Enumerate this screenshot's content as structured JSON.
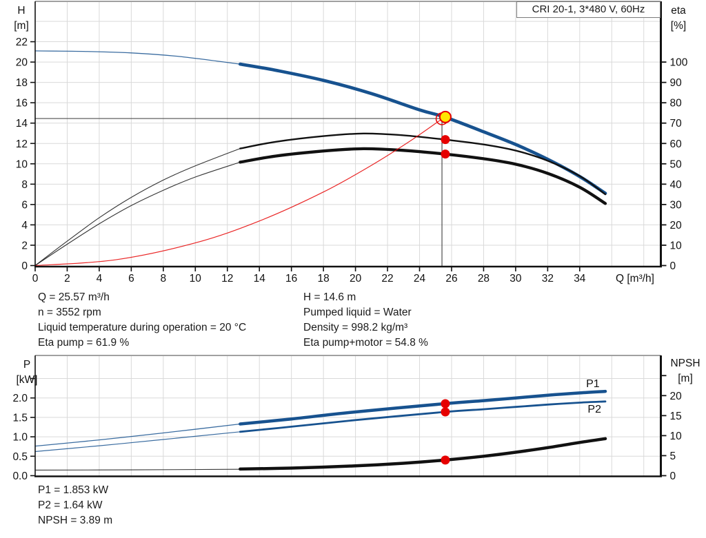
{
  "title_box": "CRI 20-1, 3*480 V, 60Hz",
  "colors": {
    "blue": "#17528f",
    "red": "#e60000",
    "yellow": "#ffe600",
    "black": "#111111",
    "grid": "#d9d9d9",
    "border_gray": "#a0a0a0",
    "crosshair": "#4d4d4d"
  },
  "info_top": {
    "left": [
      "Q = 25.57 m³/h",
      "n = 3552 rpm",
      "Liquid temperature during operation = 20 °C",
      "Eta pump = 61.9 %"
    ],
    "right": [
      "H = 14.6 m",
      "Pumped liquid = Water",
      "Density = 998.2 kg/m³",
      "Eta pump+motor = 54.8 %"
    ]
  },
  "info_bottom": [
    "P1 = 1.853 kW",
    "P2 = 1.64 kW",
    "NPSH = 3.89 m"
  ],
  "chart_data": [
    {
      "id": "hq",
      "type": "line",
      "title": "CRI 20-1, 3*480 V, 60Hz",
      "x_axis": {
        "label": "Q [m³/h]",
        "ticks": [
          0,
          2,
          4,
          6,
          8,
          10,
          12,
          14,
          16,
          18,
          20,
          22,
          24,
          26,
          28,
          30,
          32,
          34
        ],
        "range": [
          0,
          39
        ]
      },
      "y_left": {
        "label_lines": [
          "H",
          "[m]"
        ],
        "ticks": [
          0,
          2,
          4,
          6,
          8,
          10,
          12,
          14,
          16,
          18,
          20,
          22
        ],
        "range": [
          0,
          26
        ],
        "extra_grid": [
          24
        ]
      },
      "y_right": {
        "label_lines": [
          "eta",
          "[%]"
        ],
        "ticks": [
          0,
          10,
          20,
          30,
          40,
          50,
          60,
          70,
          80,
          90,
          100
        ],
        "range": [
          0,
          130
        ],
        "unlabeled_ticks": []
      },
      "crosshair": {
        "q": 25.4,
        "value": 14.45
      },
      "series": [
        {
          "name": "pump-curve-h",
          "axis": "left",
          "color": "blue",
          "thin_width": 1.3,
          "thick_width": 4.7,
          "thin": [
            [
              0,
              21.1
            ],
            [
              3,
              21.05
            ],
            [
              6,
              20.9
            ],
            [
              9,
              20.55
            ],
            [
              12.8,
              19.8
            ]
          ],
          "thick": [
            [
              12.8,
              19.8
            ],
            [
              15,
              19.2
            ],
            [
              18,
              18.2
            ],
            [
              21,
              16.9
            ],
            [
              24,
              15.3
            ],
            [
              25.57,
              14.6
            ],
            [
              28,
              13.15
            ],
            [
              30,
              11.9
            ],
            [
              32,
              10.45
            ],
            [
              34,
              8.75
            ],
            [
              35.6,
              7.1
            ]
          ]
        },
        {
          "name": "eta-pump-curve",
          "axis": "right",
          "color": "black",
          "thin_width": 1.1,
          "thick_width": 2.4,
          "thin": [
            [
              0,
              0
            ],
            [
              2,
              12
            ],
            [
              4,
              23.5
            ],
            [
              6,
              33.5
            ],
            [
              8,
              42
            ],
            [
              10,
              49
            ],
            [
              12.8,
              57.5
            ]
          ],
          "thick": [
            [
              12.8,
              57.5
            ],
            [
              15,
              60.8
            ],
            [
              18,
              63.6
            ],
            [
              20.5,
              64.9
            ],
            [
              23,
              64
            ],
            [
              25.57,
              61.9
            ],
            [
              28,
              59.5
            ],
            [
              30,
              56.5
            ],
            [
              32,
              51.5
            ],
            [
              34,
              44
            ],
            [
              35.6,
              35
            ]
          ]
        },
        {
          "name": "eta-pump-motor-curve",
          "axis": "right",
          "color": "black",
          "thin_width": 1.1,
          "thick_width": 4.3,
          "thin": [
            [
              0,
              0
            ],
            [
              2,
              10.5
            ],
            [
              4,
              20.5
            ],
            [
              6,
              29.5
            ],
            [
              8,
              37
            ],
            [
              10,
              43.5
            ],
            [
              12.8,
              50.8
            ]
          ],
          "thick": [
            [
              12.8,
              50.8
            ],
            [
              15,
              53.8
            ],
            [
              18,
              56.3
            ],
            [
              20.5,
              57.4
            ],
            [
              23,
              56.6
            ],
            [
              25.57,
              54.8
            ],
            [
              28,
              52.5
            ],
            [
              30,
              49.8
            ],
            [
              32,
              45.3
            ],
            [
              34,
              38.5
            ],
            [
              35.6,
              30.5
            ]
          ]
        },
        {
          "name": "system-curve",
          "axis": "left",
          "color": "red",
          "thin_width": 1.2,
          "thick_width": 0,
          "thin": [
            [
              0,
              0
            ],
            [
              5,
              0.56
            ],
            [
              10,
              2.23
            ],
            [
              14,
              4.38
            ],
            [
              18,
              7.23
            ],
            [
              21,
              9.85
            ],
            [
              23.5,
              12.33
            ],
            [
              25.7,
              14.75
            ]
          ],
          "thick": []
        }
      ],
      "markers": [
        {
          "name": "crosshair-intersection-marker",
          "q": 25.4,
          "value": 14.42,
          "axis": "left",
          "style": "open-red"
        },
        {
          "name": "duty-point-marker",
          "q": 25.61,
          "value": 14.6,
          "axis": "left",
          "style": "yellow"
        },
        {
          "name": "eta-pump-duty-marker",
          "q": 25.61,
          "value": 61.9,
          "axis": "right",
          "style": "red"
        },
        {
          "name": "eta-pump-motor-duty-marker",
          "q": 25.61,
          "value": 54.8,
          "axis": "right",
          "style": "red"
        }
      ],
      "curve_labels": []
    },
    {
      "id": "power-npsh",
      "type": "line",
      "title": "",
      "x_axis": {
        "label": "",
        "ticks": [],
        "range": [
          0,
          39
        ]
      },
      "y_left": {
        "label_lines": [
          "P",
          "[kW]"
        ],
        "ticks": [
          0,
          0.5,
          1,
          1.5,
          2
        ],
        "tick_labels": [
          "0.0",
          "0.5",
          "1.0",
          "1.5",
          "2.0"
        ],
        "range": [
          0,
          3.1
        ],
        "extra_grid": [
          2.5
        ],
        "unlabeled_ticks": [
          2.5
        ]
      },
      "y_right": {
        "label_lines": [
          "NPSH",
          "[m]"
        ],
        "ticks": [
          0,
          5,
          10,
          15,
          20
        ],
        "range": [
          0,
          30
        ],
        "unlabeled_ticks": [
          25
        ]
      },
      "crosshair": null,
      "series": [
        {
          "name": "p1-curve",
          "axis": "left",
          "color": "blue",
          "thin_width": 1.3,
          "thick_width": 4.5,
          "thin": [
            [
              0,
              0.76
            ],
            [
              4,
              0.92
            ],
            [
              8,
              1.1
            ],
            [
              12.8,
              1.33
            ]
          ],
          "thick": [
            [
              12.8,
              1.33
            ],
            [
              16,
              1.46
            ],
            [
              20,
              1.64
            ],
            [
              25.57,
              1.853
            ],
            [
              28,
              1.93
            ],
            [
              30,
              2.0
            ],
            [
              32,
              2.07
            ],
            [
              34,
              2.13
            ],
            [
              35.6,
              2.17
            ]
          ]
        },
        {
          "name": "p2-curve",
          "axis": "left",
          "color": "blue",
          "thin_width": 1.2,
          "thick_width": 2.8,
          "thin": [
            [
              0,
              0.62
            ],
            [
              4,
              0.77
            ],
            [
              8,
              0.93
            ],
            [
              12.8,
              1.13
            ]
          ],
          "thick": [
            [
              12.8,
              1.13
            ],
            [
              16,
              1.26
            ],
            [
              20,
              1.43
            ],
            [
              25.57,
              1.64
            ],
            [
              28,
              1.71
            ],
            [
              30,
              1.77
            ],
            [
              32,
              1.83
            ],
            [
              34,
              1.88
            ],
            [
              35.6,
              1.91
            ]
          ]
        },
        {
          "name": "npsh-curve",
          "axis": "right",
          "color": "black",
          "thin_width": 1.1,
          "thick_width": 4.5,
          "thin": [
            [
              0,
              1.4
            ],
            [
              6,
              1.45
            ],
            [
              12.8,
              1.6
            ]
          ],
          "thick": [
            [
              12.8,
              1.65
            ],
            [
              16,
              1.9
            ],
            [
              20,
              2.45
            ],
            [
              23,
              3.1
            ],
            [
              25.57,
              3.89
            ],
            [
              28,
              4.85
            ],
            [
              30,
              5.85
            ],
            [
              32,
              7.0
            ],
            [
              34,
              8.3
            ],
            [
              35.6,
              9.25
            ]
          ]
        }
      ],
      "markers": [
        {
          "name": "p1-duty-marker",
          "q": 25.61,
          "value": 1.853,
          "axis": "left",
          "style": "red"
        },
        {
          "name": "p2-duty-marker",
          "q": 25.61,
          "value": 1.64,
          "axis": "left",
          "style": "red"
        },
        {
          "name": "npsh-duty-marker",
          "q": 25.61,
          "value": 3.89,
          "axis": "right",
          "style": "red"
        }
      ],
      "curve_labels": [
        {
          "text": "P1",
          "q": 34.4,
          "value": 2.28,
          "color": "blue"
        },
        {
          "text": "P2",
          "q": 34.5,
          "value": 1.62,
          "color": "blue"
        }
      ]
    }
  ]
}
